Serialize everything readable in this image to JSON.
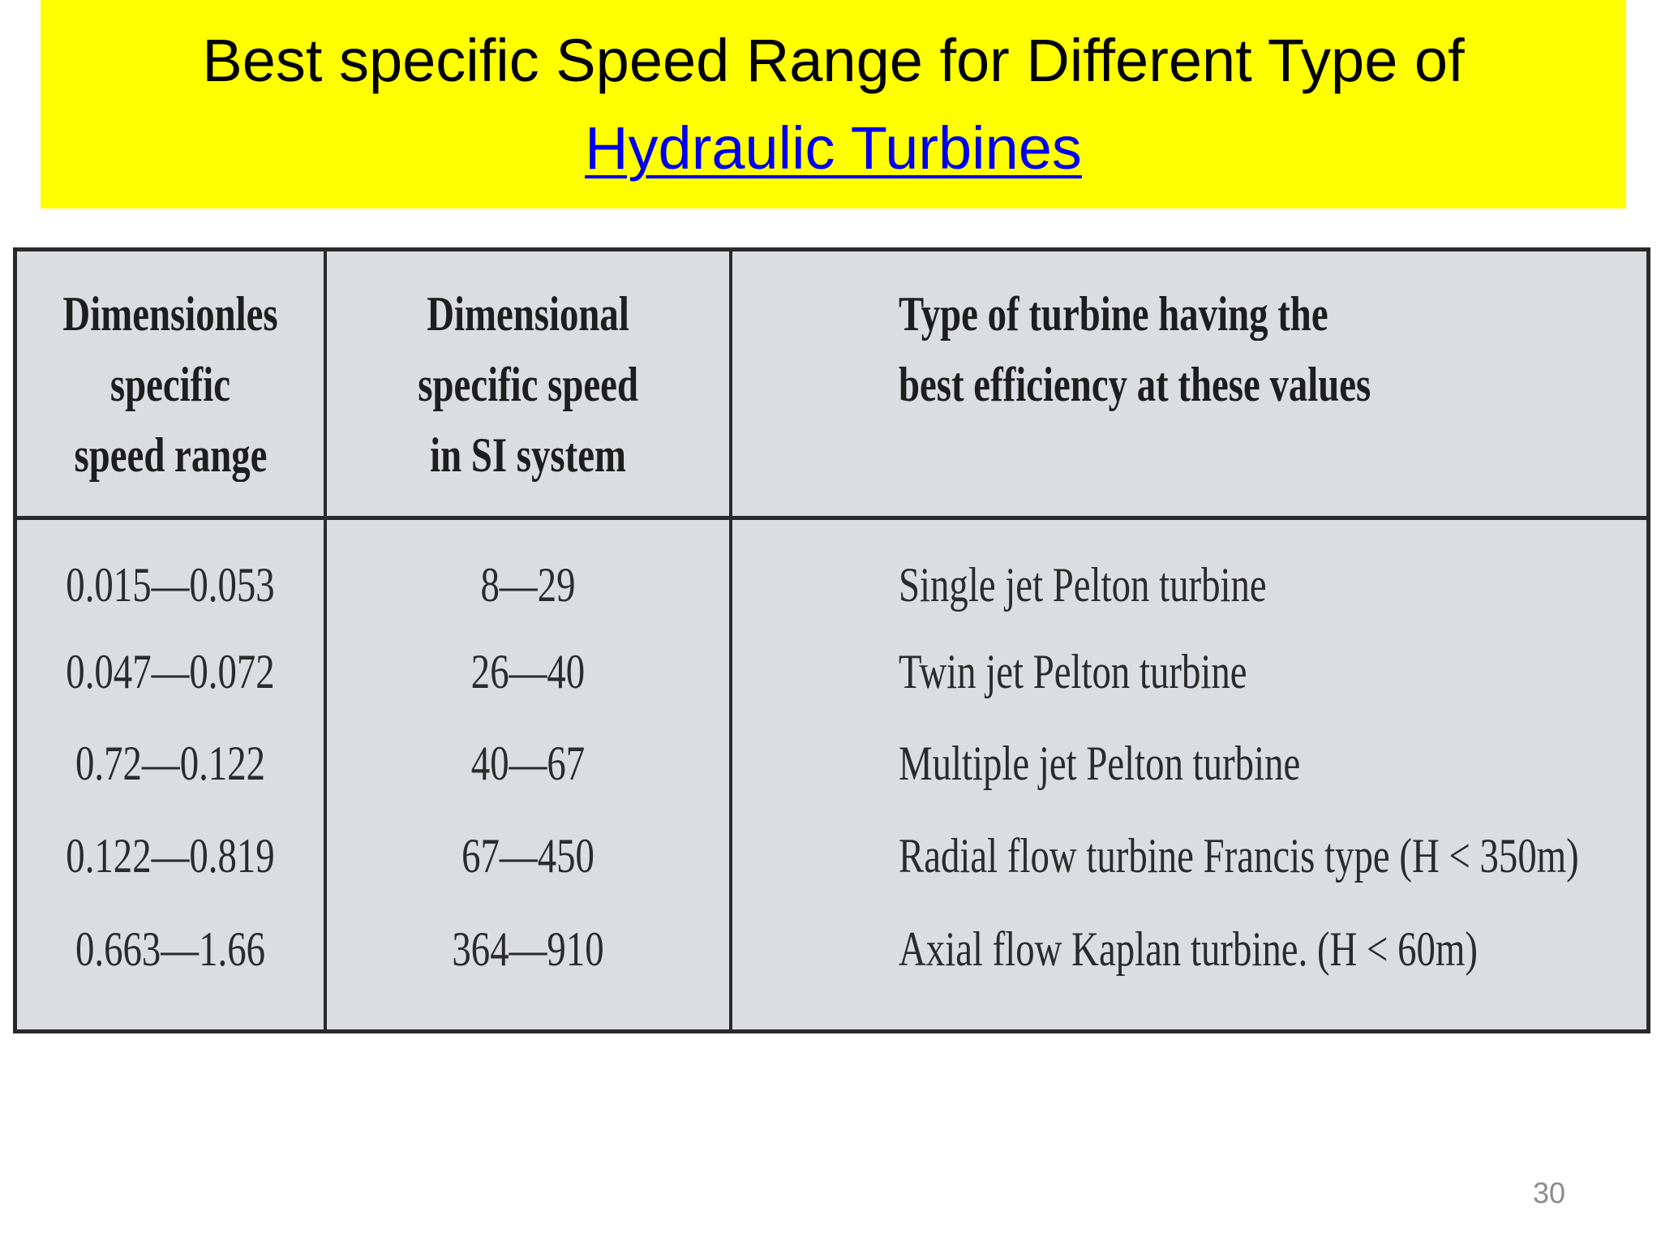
{
  "header": {
    "title": "Best specific Speed Range for Different Type of",
    "title_link": "Hydraulic Turbines"
  },
  "table": {
    "columns": [
      [
        "Dimensionles",
        "specific",
        "speed range"
      ],
      [
        "Dimensional",
        "specific speed",
        "in SI system"
      ],
      [
        "Type of turbine having the",
        "best efficiency at these values"
      ]
    ],
    "rows": [
      [
        "0.015—0.053",
        "8—29",
        "Single jet Pelton turbine"
      ],
      [
        "0.047—0.072",
        "26—40",
        "Twin jet Pelton turbine"
      ],
      [
        "0.72—0.122",
        "40—67",
        "Multiple jet Pelton turbine"
      ],
      [
        "0.122—0.819",
        "67—450",
        "Radial flow turbine Francis type (H < 350m)"
      ],
      [
        "0.663—1.66",
        "364—910",
        "Axial flow Kaplan turbine. (H < 60m)"
      ]
    ]
  },
  "page_number": "30"
}
